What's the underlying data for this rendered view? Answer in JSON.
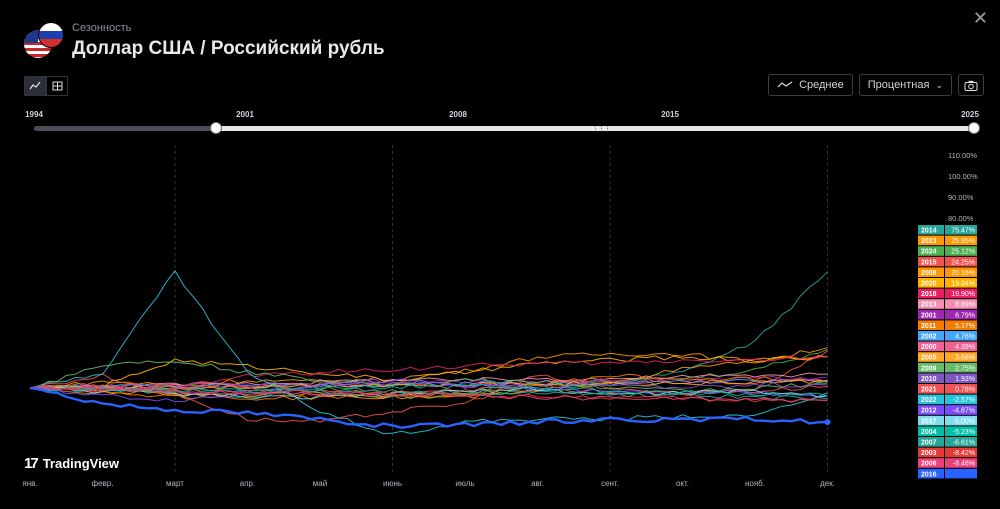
{
  "header": {
    "subtitle": "Сезонность",
    "title": "Доллар США / Российский рубль"
  },
  "toolbar": {
    "chart_view_icon": "line-chart-icon",
    "table_view_icon": "table-icon",
    "average_label": "Среднее",
    "scale_label": "Процентная",
    "screenshot_icon": "camera-icon"
  },
  "range_slider": {
    "years": [
      "1994",
      "2001",
      "2008",
      "2015",
      "2025"
    ],
    "selected_start": "2001",
    "selected_end": "2025"
  },
  "watermark": "TradingView",
  "chart_data": {
    "type": "line",
    "x_unit": "month",
    "xlabels": [
      "янв.",
      "февр.",
      "март",
      "апр.",
      "май",
      "июнь",
      "июль",
      "авг.",
      "сент.",
      "окт.",
      "нояб.",
      "дек."
    ],
    "y_ticks": [
      "110.00%",
      "100.00%",
      "90.00%",
      "80.00%"
    ],
    "y_scale": "percent",
    "grid": "vertical dashed at март, июнь, сент., дек.",
    "legend_position": "right",
    "series": [
      {
        "name": "2014",
        "value": "75.47%",
        "color": "#26a69a",
        "points": [
          [
            0,
            0
          ],
          [
            1,
            -1
          ],
          [
            2,
            -3
          ],
          [
            3,
            -5
          ],
          [
            4,
            -3
          ],
          [
            5,
            -6
          ],
          [
            6,
            -4
          ],
          [
            7,
            -2
          ],
          [
            8,
            3
          ],
          [
            9,
            10
          ],
          [
            10,
            30
          ],
          [
            11,
            75
          ]
        ]
      },
      {
        "name": "2023",
        "value": "25.85%",
        "color": "#ff9800",
        "points": [
          [
            0,
            0
          ],
          [
            1,
            4
          ],
          [
            2,
            2
          ],
          [
            3,
            5
          ],
          [
            4,
            4
          ],
          [
            5,
            6
          ],
          [
            6,
            11
          ],
          [
            7,
            20
          ],
          [
            8,
            22
          ],
          [
            9,
            22
          ],
          [
            10,
            17
          ],
          [
            11,
            26
          ]
        ]
      },
      {
        "name": "2024",
        "value": "25.12%",
        "color": "#4caf50",
        "points": [
          [
            0,
            0
          ],
          [
            1,
            1
          ],
          [
            2,
            2
          ],
          [
            3,
            1
          ],
          [
            4,
            0
          ],
          [
            5,
            -2
          ],
          [
            6,
            -3
          ],
          [
            7,
            2
          ],
          [
            8,
            4
          ],
          [
            9,
            6
          ],
          [
            10,
            12
          ],
          [
            11,
            25
          ]
        ]
      },
      {
        "name": "2015",
        "value": "24.25%",
        "color": "#ef5350",
        "points": [
          [
            0,
            0
          ],
          [
            1,
            8
          ],
          [
            2,
            -4
          ],
          [
            3,
            -20
          ],
          [
            4,
            -22
          ],
          [
            5,
            -15
          ],
          [
            6,
            -10
          ],
          [
            7,
            8
          ],
          [
            8,
            0
          ],
          [
            9,
            -4
          ],
          [
            10,
            0
          ],
          [
            11,
            24
          ]
        ]
      },
      {
        "name": "2008",
        "value": "20.16%",
        "color": "#ff9800",
        "points": [
          [
            0,
            0
          ],
          [
            1,
            -2
          ],
          [
            2,
            -4
          ],
          [
            3,
            -4
          ],
          [
            4,
            -4
          ],
          [
            5,
            -6
          ],
          [
            6,
            -6
          ],
          [
            7,
            -2
          ],
          [
            8,
            4
          ],
          [
            9,
            12
          ],
          [
            10,
            18
          ],
          [
            11,
            20
          ]
        ]
      },
      {
        "name": "2020",
        "value": "19.94%",
        "color": "#ffb300",
        "points": [
          [
            0,
            0
          ],
          [
            1,
            1
          ],
          [
            2,
            18
          ],
          [
            3,
            14
          ],
          [
            4,
            10
          ],
          [
            5,
            5
          ],
          [
            6,
            10
          ],
          [
            7,
            16
          ],
          [
            8,
            18
          ],
          [
            9,
            20
          ],
          [
            10,
            18
          ],
          [
            11,
            20
          ]
        ]
      },
      {
        "name": "2018",
        "value": "19.90%",
        "color": "#e91e63",
        "points": [
          [
            0,
            0
          ],
          [
            1,
            -2
          ],
          [
            2,
            0
          ],
          [
            3,
            8
          ],
          [
            4,
            10
          ],
          [
            5,
            12
          ],
          [
            6,
            14
          ],
          [
            7,
            16
          ],
          [
            8,
            16
          ],
          [
            9,
            18
          ],
          [
            10,
            18
          ],
          [
            11,
            20
          ]
        ]
      },
      {
        "name": "2013",
        "value": "8.89%",
        "color": "#f48fb1",
        "points": [
          [
            0,
            0
          ],
          [
            1,
            1
          ],
          [
            2,
            2
          ],
          [
            3,
            3
          ],
          [
            4,
            4
          ],
          [
            5,
            5
          ],
          [
            6,
            5
          ],
          [
            7,
            6
          ],
          [
            8,
            6
          ],
          [
            9,
            7
          ],
          [
            10,
            8
          ],
          [
            11,
            9
          ]
        ]
      },
      {
        "name": "2001",
        "value": "6.79%",
        "color": "#9c27b0",
        "points": [
          [
            0,
            0
          ],
          [
            1,
            1
          ],
          [
            2,
            2
          ],
          [
            3,
            2
          ],
          [
            4,
            3
          ],
          [
            5,
            3
          ],
          [
            6,
            4
          ],
          [
            7,
            4
          ],
          [
            8,
            5
          ],
          [
            9,
            5
          ],
          [
            10,
            6
          ],
          [
            11,
            7
          ]
        ]
      },
      {
        "name": "2011",
        "value": "5.17%",
        "color": "#f57c00",
        "points": [
          [
            0,
            0
          ],
          [
            1,
            -3
          ],
          [
            2,
            -5
          ],
          [
            3,
            -7
          ],
          [
            4,
            -6
          ],
          [
            5,
            -5
          ],
          [
            6,
            -4
          ],
          [
            7,
            2
          ],
          [
            8,
            8
          ],
          [
            9,
            6
          ],
          [
            10,
            6
          ],
          [
            11,
            5
          ]
        ]
      },
      {
        "name": "2002",
        "value": "4.76%",
        "color": "#42a5f5",
        "points": [
          [
            0,
            0
          ],
          [
            1,
            1
          ],
          [
            2,
            1
          ],
          [
            3,
            2
          ],
          [
            4,
            2
          ],
          [
            5,
            2
          ],
          [
            6,
            3
          ],
          [
            7,
            3
          ],
          [
            8,
            3
          ],
          [
            9,
            4
          ],
          [
            10,
            4
          ],
          [
            11,
            5
          ]
        ]
      },
      {
        "name": "2000",
        "value": "4.39%",
        "color": "#f06292",
        "points": [
          [
            0,
            0
          ],
          [
            1,
            0
          ],
          [
            2,
            1
          ],
          [
            3,
            1
          ],
          [
            4,
            2
          ],
          [
            5,
            2
          ],
          [
            6,
            2
          ],
          [
            7,
            3
          ],
          [
            8,
            3
          ],
          [
            9,
            4
          ],
          [
            10,
            4
          ],
          [
            11,
            4
          ]
        ]
      },
      {
        "name": "2005",
        "value": "3.68%",
        "color": "#ffa726",
        "points": [
          [
            0,
            0
          ],
          [
            1,
            1
          ],
          [
            2,
            0
          ],
          [
            3,
            1
          ],
          [
            4,
            2
          ],
          [
            5,
            2
          ],
          [
            6,
            2
          ],
          [
            7,
            3
          ],
          [
            8,
            3
          ],
          [
            9,
            3
          ],
          [
            10,
            4
          ],
          [
            11,
            4
          ]
        ]
      },
      {
        "name": "2009",
        "value": "2.75%",
        "color": "#66bb6a",
        "points": [
          [
            0,
            0
          ],
          [
            1,
            15
          ],
          [
            2,
            18
          ],
          [
            3,
            10
          ],
          [
            4,
            5
          ],
          [
            5,
            3
          ],
          [
            6,
            5
          ],
          [
            7,
            4
          ],
          [
            8,
            0
          ],
          [
            9,
            -2
          ],
          [
            10,
            0
          ],
          [
            11,
            3
          ]
        ]
      },
      {
        "name": "2010",
        "value": "1.93%",
        "color": "#7e57c2",
        "points": [
          [
            0,
            0
          ],
          [
            1,
            0
          ],
          [
            2,
            -2
          ],
          [
            3,
            -3
          ],
          [
            4,
            2
          ],
          [
            5,
            3
          ],
          [
            6,
            1
          ],
          [
            7,
            1
          ],
          [
            8,
            2
          ],
          [
            9,
            1
          ],
          [
            10,
            2
          ],
          [
            11,
            2
          ]
        ]
      },
      {
        "name": "2021",
        "value": "0.78%",
        "color": "#ef5350",
        "points": [
          [
            0,
            0
          ],
          [
            1,
            2
          ],
          [
            2,
            1
          ],
          [
            3,
            0
          ],
          [
            4,
            -2
          ],
          [
            5,
            -3
          ],
          [
            6,
            -1
          ],
          [
            7,
            -1
          ],
          [
            8,
            -2
          ],
          [
            9,
            -4
          ],
          [
            10,
            -2
          ],
          [
            11,
            1
          ]
        ]
      },
      {
        "name": "2022",
        "value": "-2.57%",
        "color": "#26c6da",
        "points": [
          [
            0,
            0
          ],
          [
            1,
            10
          ],
          [
            2,
            75
          ],
          [
            3,
            10
          ],
          [
            4,
            -15
          ],
          [
            5,
            -30
          ],
          [
            6,
            -22
          ],
          [
            7,
            -20
          ],
          [
            8,
            -20
          ],
          [
            9,
            -18
          ],
          [
            10,
            -18
          ],
          [
            11,
            -3
          ]
        ]
      },
      {
        "name": "2012",
        "value": "-4.87%",
        "color": "#7c4dff",
        "points": [
          [
            0,
            0
          ],
          [
            1,
            -5
          ],
          [
            2,
            -8
          ],
          [
            3,
            -4
          ],
          [
            4,
            2
          ],
          [
            5,
            5
          ],
          [
            6,
            2
          ],
          [
            7,
            0
          ],
          [
            8,
            -3
          ],
          [
            9,
            -2
          ],
          [
            10,
            -3
          ],
          [
            11,
            -5
          ]
        ]
      },
      {
        "name": "2017",
        "value": "-5.00%",
        "color": "#80deea",
        "points": [
          [
            0,
            0
          ],
          [
            1,
            -2
          ],
          [
            2,
            -4
          ],
          [
            3,
            -6
          ],
          [
            4,
            -6
          ],
          [
            5,
            -4
          ],
          [
            6,
            -2
          ],
          [
            7,
            -1
          ],
          [
            8,
            -4
          ],
          [
            9,
            -3
          ],
          [
            10,
            -2
          ],
          [
            11,
            -5
          ]
        ]
      },
      {
        "name": "2004",
        "value": "-5.23%",
        "color": "#00bfa5",
        "points": [
          [
            0,
            0
          ],
          [
            1,
            -1
          ],
          [
            2,
            -1
          ],
          [
            3,
            -1
          ],
          [
            4,
            0
          ],
          [
            5,
            1
          ],
          [
            6,
            1
          ],
          [
            7,
            0
          ],
          [
            8,
            -2
          ],
          [
            9,
            -3
          ],
          [
            10,
            -4
          ],
          [
            11,
            -5
          ]
        ]
      },
      {
        "name": "2007",
        "value": "-6.61%",
        "color": "#26a69a",
        "points": [
          [
            0,
            0
          ],
          [
            1,
            -1
          ],
          [
            2,
            -2
          ],
          [
            3,
            -2
          ],
          [
            4,
            -2
          ],
          [
            5,
            -3
          ],
          [
            6,
            -3
          ],
          [
            7,
            -3
          ],
          [
            8,
            -4
          ],
          [
            9,
            -5
          ],
          [
            10,
            -6
          ],
          [
            11,
            -7
          ]
        ]
      },
      {
        "name": "2003",
        "value": "-8.42%",
        "color": "#e53935",
        "points": [
          [
            0,
            0
          ],
          [
            1,
            -1
          ],
          [
            2,
            -2
          ],
          [
            3,
            -3
          ],
          [
            4,
            -3
          ],
          [
            5,
            -4
          ],
          [
            6,
            -5
          ],
          [
            7,
            -5
          ],
          [
            8,
            -6
          ],
          [
            9,
            -7
          ],
          [
            10,
            -8
          ],
          [
            11,
            -8
          ]
        ]
      },
      {
        "name": "2006",
        "value": "-8.46%",
        "color": "#ec407a",
        "points": [
          [
            0,
            0
          ],
          [
            1,
            -1
          ],
          [
            2,
            -2
          ],
          [
            3,
            -3
          ],
          [
            4,
            -4
          ],
          [
            5,
            -4
          ],
          [
            6,
            -5
          ],
          [
            7,
            -6
          ],
          [
            8,
            -7
          ],
          [
            9,
            -7
          ],
          [
            10,
            -8
          ],
          [
            11,
            -8
          ]
        ]
      },
      {
        "name": "2016",
        "value": "",
        "color": "#2962ff",
        "points": [
          [
            0,
            0
          ],
          [
            1,
            -10
          ],
          [
            2,
            -14
          ],
          [
            3,
            -16
          ],
          [
            4,
            -20
          ],
          [
            5,
            -25
          ],
          [
            6,
            -24
          ],
          [
            7,
            -22
          ],
          [
            8,
            -20
          ],
          [
            9,
            -21
          ],
          [
            10,
            -20
          ],
          [
            11,
            -22
          ]
        ]
      }
    ]
  }
}
